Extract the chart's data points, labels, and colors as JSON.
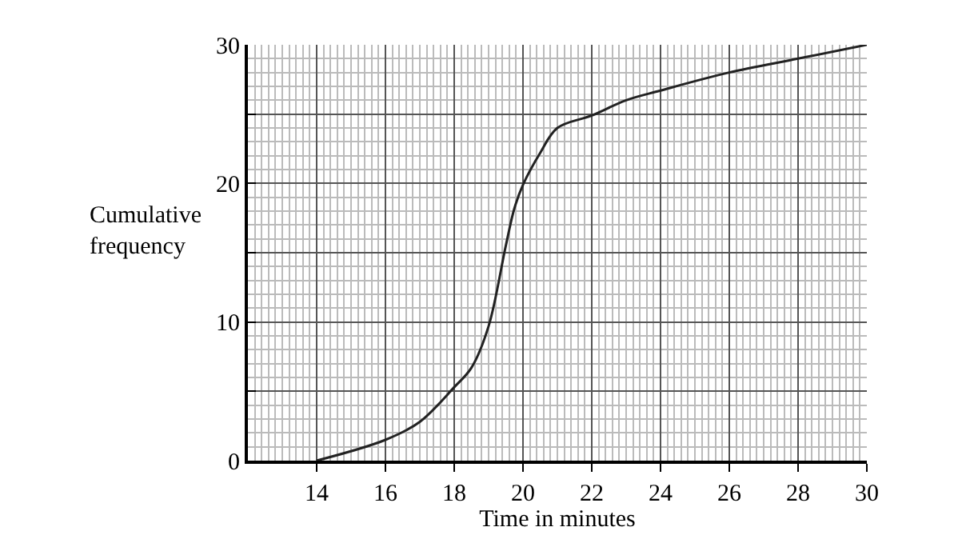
{
  "chart_data": {
    "type": "line",
    "xlabel": "Time in minutes",
    "ylabel": "Cumulative frequency",
    "x": [
      14,
      16,
      17,
      18,
      18.5,
      19,
      19.5,
      19.75,
      20,
      20.5,
      21,
      22,
      23,
      24,
      26,
      28,
      30
    ],
    "series": [
      {
        "color": "#222222",
        "values": [
          0,
          1.5,
          2.8,
          5.3,
          6.7,
          9.7,
          15.5,
          18.2,
          19.9,
          22.2,
          24.0,
          24.9,
          26.0,
          26.7,
          28.0,
          29.0,
          30
        ]
      }
    ],
    "xlim": [
      12,
      30
    ],
    "ylim": [
      0,
      30
    ],
    "xticks": [
      14,
      16,
      18,
      20,
      22,
      24,
      26,
      28,
      30
    ],
    "yticks": [
      0,
      {
        "value": 5,
        "label": null
      },
      10,
      {
        "value": 15,
        "label": null
      },
      20,
      {
        "value": 25,
        "label": null
      },
      30
    ],
    "grid": true,
    "marker": "none",
    "line_style": "solid"
  }
}
